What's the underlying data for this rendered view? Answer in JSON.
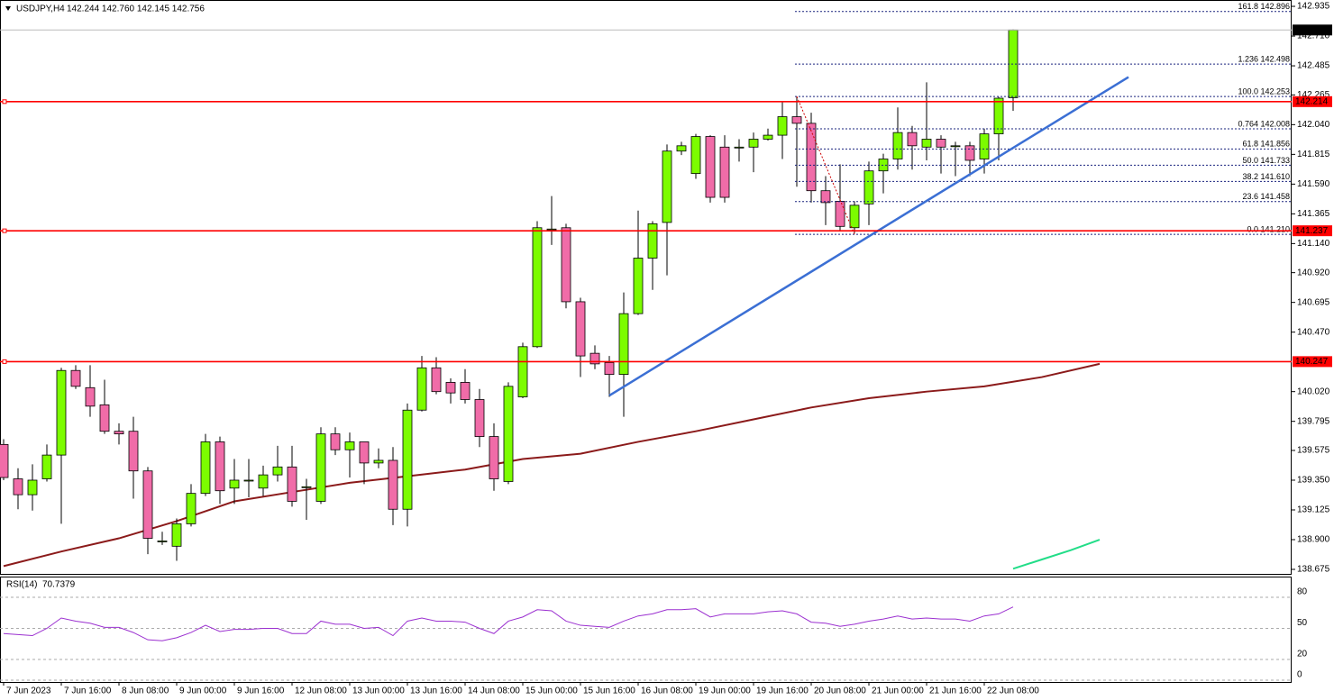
{
  "chart_data": [
    {
      "type": "candlestick",
      "title": "USDJPY,H4",
      "ohlc_text": "142.244 142.760 142.145 142.756",
      "categories": [
        "7 Jun 2023",
        null,
        null,
        null,
        "7 Jun 16:00",
        null,
        null,
        null,
        "8 Jun 08:00",
        null,
        null,
        null,
        "9 Jun 00:00",
        null,
        null,
        null,
        "9 Jun 16:00",
        null,
        null,
        null,
        "12 Jun 08:00",
        null,
        null,
        null,
        "13 Jun 00:00",
        null,
        null,
        null,
        "13 Jun 16:00",
        null,
        null,
        null,
        "14 Jun 08:00",
        null,
        null,
        null,
        "15 Jun 00:00",
        null,
        null,
        null,
        "15 Jun 16:00",
        null,
        null,
        null,
        "16 Jun 08:00",
        null,
        null,
        null,
        "19 Jun 00:00",
        null,
        null,
        null,
        "19 Jun 16:00",
        null,
        null,
        null,
        "20 Jun 08:00",
        null,
        null,
        null,
        "21 Jun 00:00",
        null,
        null,
        null,
        "21 Jun 16:00",
        null,
        null,
        null,
        "22 Jun 08:00",
        null,
        null
      ],
      "open": [
        139.62,
        139.36,
        139.24,
        139.36,
        139.54,
        140.18,
        140.05,
        139.92,
        139.72,
        139.72,
        139.42,
        138.89,
        138.85,
        139.02,
        139.25,
        139.64,
        139.29,
        139.35,
        139.29,
        139.39,
        139.45,
        139.3,
        139.19,
        139.7,
        139.58,
        139.64,
        139.48,
        139.5,
        139.13,
        139.88,
        140.2,
        140.09,
        140.09,
        139.96,
        139.68,
        139.34,
        139.98,
        140.36,
        141.25,
        141.26,
        140.7,
        140.31,
        140.24,
        140.15,
        140.61,
        141.03,
        141.3,
        141.84,
        141.67,
        141.95,
        141.87,
        141.87,
        141.87,
        141.93,
        141.96,
        142.1,
        142.05,
        141.54,
        141.46,
        141.26,
        141.44,
        141.69,
        141.78,
        141.98,
        141.87,
        141.93,
        141.88,
        141.88,
        141.78,
        141.97,
        142.244
      ],
      "high": [
        139.66,
        139.44,
        139.47,
        139.62,
        140.2,
        140.22,
        140.22,
        140.11,
        139.78,
        139.83,
        139.45,
        138.96,
        139.06,
        139.32,
        139.7,
        139.68,
        139.51,
        139.51,
        139.46,
        139.61,
        139.61,
        139.36,
        139.75,
        139.75,
        139.71,
        139.64,
        139.59,
        139.6,
        139.93,
        140.29,
        140.28,
        140.12,
        140.19,
        140.04,
        139.78,
        140.09,
        140.39,
        141.31,
        141.5,
        141.29,
        140.73,
        140.37,
        140.29,
        140.77,
        141.39,
        141.31,
        141.89,
        141.91,
        141.97,
        141.96,
        141.96,
        141.93,
        141.98,
        142.01,
        142.21,
        142.25,
        142.13,
        141.65,
        141.74,
        141.46,
        141.76,
        141.82,
        142.17,
        142.03,
        142.36,
        141.96,
        141.91,
        141.91,
        142.01,
        142.25,
        142.76
      ],
      "low": [
        139.35,
        139.13,
        139.12,
        139.34,
        139.02,
        140.04,
        139.83,
        139.7,
        139.62,
        139.21,
        138.79,
        138.86,
        138.74,
        139.0,
        139.23,
        139.17,
        139.17,
        139.22,
        139.23,
        139.34,
        139.15,
        139.05,
        139.17,
        139.54,
        139.37,
        139.32,
        139.44,
        139.01,
        139.0,
        139.87,
        140.0,
        139.93,
        139.93,
        139.6,
        139.27,
        139.32,
        139.97,
        140.35,
        141.13,
        140.65,
        140.13,
        140.19,
        139.98,
        139.83,
        140.6,
        140.79,
        140.9,
        141.81,
        141.63,
        141.45,
        141.45,
        141.76,
        141.68,
        141.92,
        141.78,
        141.57,
        141.45,
        141.28,
        141.24,
        141.22,
        141.28,
        141.52,
        141.7,
        141.7,
        141.77,
        141.67,
        141.65,
        141.65,
        141.67,
        141.77,
        142.145
      ],
      "close": [
        139.37,
        139.24,
        139.35,
        139.54,
        140.18,
        140.06,
        139.91,
        139.72,
        139.7,
        139.42,
        138.91,
        138.89,
        139.02,
        139.25,
        139.64,
        139.27,
        139.35,
        139.35,
        139.39,
        139.45,
        139.19,
        139.3,
        139.7,
        139.58,
        139.64,
        139.48,
        139.5,
        139.13,
        139.88,
        140.2,
        140.02,
        140.01,
        139.96,
        139.68,
        139.36,
        140.06,
        140.36,
        141.26,
        141.25,
        140.7,
        140.29,
        140.23,
        140.15,
        140.61,
        141.03,
        141.29,
        141.84,
        141.88,
        141.95,
        141.49,
        141.49,
        141.87,
        141.93,
        141.96,
        142.1,
        142.05,
        141.54,
        141.45,
        141.27,
        141.43,
        141.69,
        141.78,
        141.98,
        141.88,
        141.93,
        141.87,
        141.88,
        141.77,
        141.97,
        142.24,
        142.756
      ],
      "up_color": "#7cfc00",
      "down_color": "#f06ca8",
      "series": [
        {
          "color": "#8b1a1a",
          "x": [
            0,
            4,
            8,
            12,
            16,
            20,
            24,
            28,
            32,
            36,
            40,
            44,
            48,
            52,
            56,
            60,
            64,
            68,
            72,
            76
          ],
          "values": [
            138.7,
            138.81,
            138.91,
            139.04,
            139.19,
            139.26,
            139.33,
            139.38,
            139.43,
            139.51,
            139.55,
            139.64,
            139.72,
            139.81,
            139.9,
            139.97,
            140.02,
            140.06,
            140.13,
            140.23
          ]
        },
        {
          "color": "#22dd88",
          "x": [
            70,
            72,
            74,
            76
          ],
          "values": [
            138.68,
            138.75,
            138.82,
            138.9
          ]
        }
      ],
      "levels": [
        142.214,
        141.237,
        140.247
      ],
      "level_color": "#ff0000",
      "fib": [
        {
          "value": 142.896,
          "label": "161.8 142.896"
        },
        {
          "value": 142.498,
          "label": "1.236 142.498"
        },
        {
          "value": 142.253,
          "label": "100.0 142.253"
        },
        {
          "value": 142.008,
          "label": "0.764 142.008"
        },
        {
          "value": 141.856,
          "label": "61.8 141.856"
        },
        {
          "value": 141.733,
          "label": "50.0 141.733"
        },
        {
          "value": 141.61,
          "label": "38.2 141.610"
        },
        {
          "value": 141.458,
          "label": "23.6 141.458"
        },
        {
          "value": 141.21,
          "label": "0.0 141.210"
        }
      ],
      "trendline": {
        "color": "#3b6fd4",
        "x": [
          42,
          78
        ],
        "values": [
          139.99,
          142.4
        ]
      },
      "ylim": [
        138.641,
        142.983
      ],
      "yticks": [
        142.935,
        {
          "value": 142.71,
          "label": "142.710"
        },
        142.485,
        142.265,
        {
          "value": 142.04,
          "label": "142.040"
        },
        141.815,
        {
          "value": 141.59,
          "label": "141.590"
        },
        141.365,
        {
          "value": 141.14,
          "label": "141.140"
        },
        {
          "value": 140.92,
          "label": "140.920"
        },
        140.695,
        {
          "value": 140.47,
          "label": "140.470"
        },
        {
          "value": 140.02,
          "label": "140.020"
        },
        139.795,
        139.575,
        {
          "value": 139.35,
          "label": "139.350"
        },
        139.125,
        {
          "value": 138.9,
          "label": "138.900"
        },
        138.675
      ]
    },
    {
      "type": "line",
      "title": "RSI(14)",
      "color": "#9b30d0",
      "values": [
        45,
        44,
        43,
        50,
        60,
        57,
        55,
        51,
        51,
        46,
        39,
        38,
        41,
        46,
        53,
        47,
        49,
        49,
        50,
        50,
        45,
        45,
        57,
        54,
        54,
        50,
        51,
        43,
        57,
        60,
        57,
        57,
        56,
        50,
        45,
        57,
        61,
        68,
        67,
        57,
        53,
        52,
        51,
        57,
        62,
        64,
        68,
        68,
        69,
        61,
        64,
        64,
        64,
        66,
        67,
        64,
        56,
        55,
        52,
        54,
        57,
        59,
        62,
        59,
        60,
        59,
        59,
        57,
        62,
        64,
        70.7379
      ],
      "ylim": [
        0,
        100
      ],
      "yticks": [
        0,
        20,
        50,
        80
      ]
    }
  ]
}
